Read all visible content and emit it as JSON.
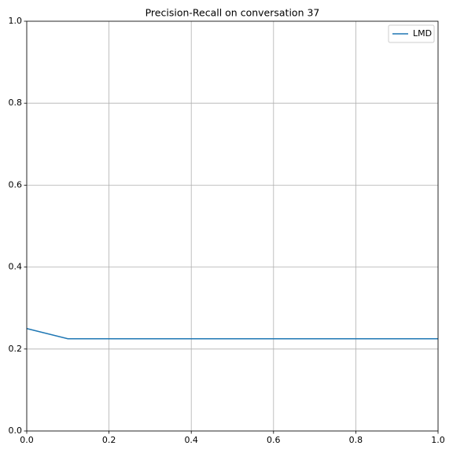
{
  "chart_data": {
    "type": "line",
    "title": "Precision-Recall on conversation 37",
    "x": [
      0,
      0.1,
      0.2,
      0.3,
      0.4,
      0.5,
      0.6,
      0.7,
      0.8,
      0.9,
      1
    ],
    "series": [
      {
        "name": "LMD",
        "color": "#1f77b4",
        "values": [
          0.25,
          0.225,
          0.225,
          0.225,
          0.225,
          0.225,
          0.225,
          0.225,
          0.225,
          0.225,
          0.225
        ]
      }
    ],
    "xlim": [
      0,
      1
    ],
    "ylim": [
      0,
      1
    ],
    "xticks": [
      {
        "value": 0,
        "label": "0.0"
      },
      0.2,
      0.4,
      0.6,
      0.8,
      {
        "value": 1,
        "label": "1.0"
      }
    ],
    "yticks": [
      {
        "value": 0,
        "label": "0.0"
      },
      0.2,
      0.4,
      0.6,
      0.8,
      {
        "value": 1,
        "label": "1.0"
      }
    ],
    "grid": true,
    "legend": "upper right"
  }
}
